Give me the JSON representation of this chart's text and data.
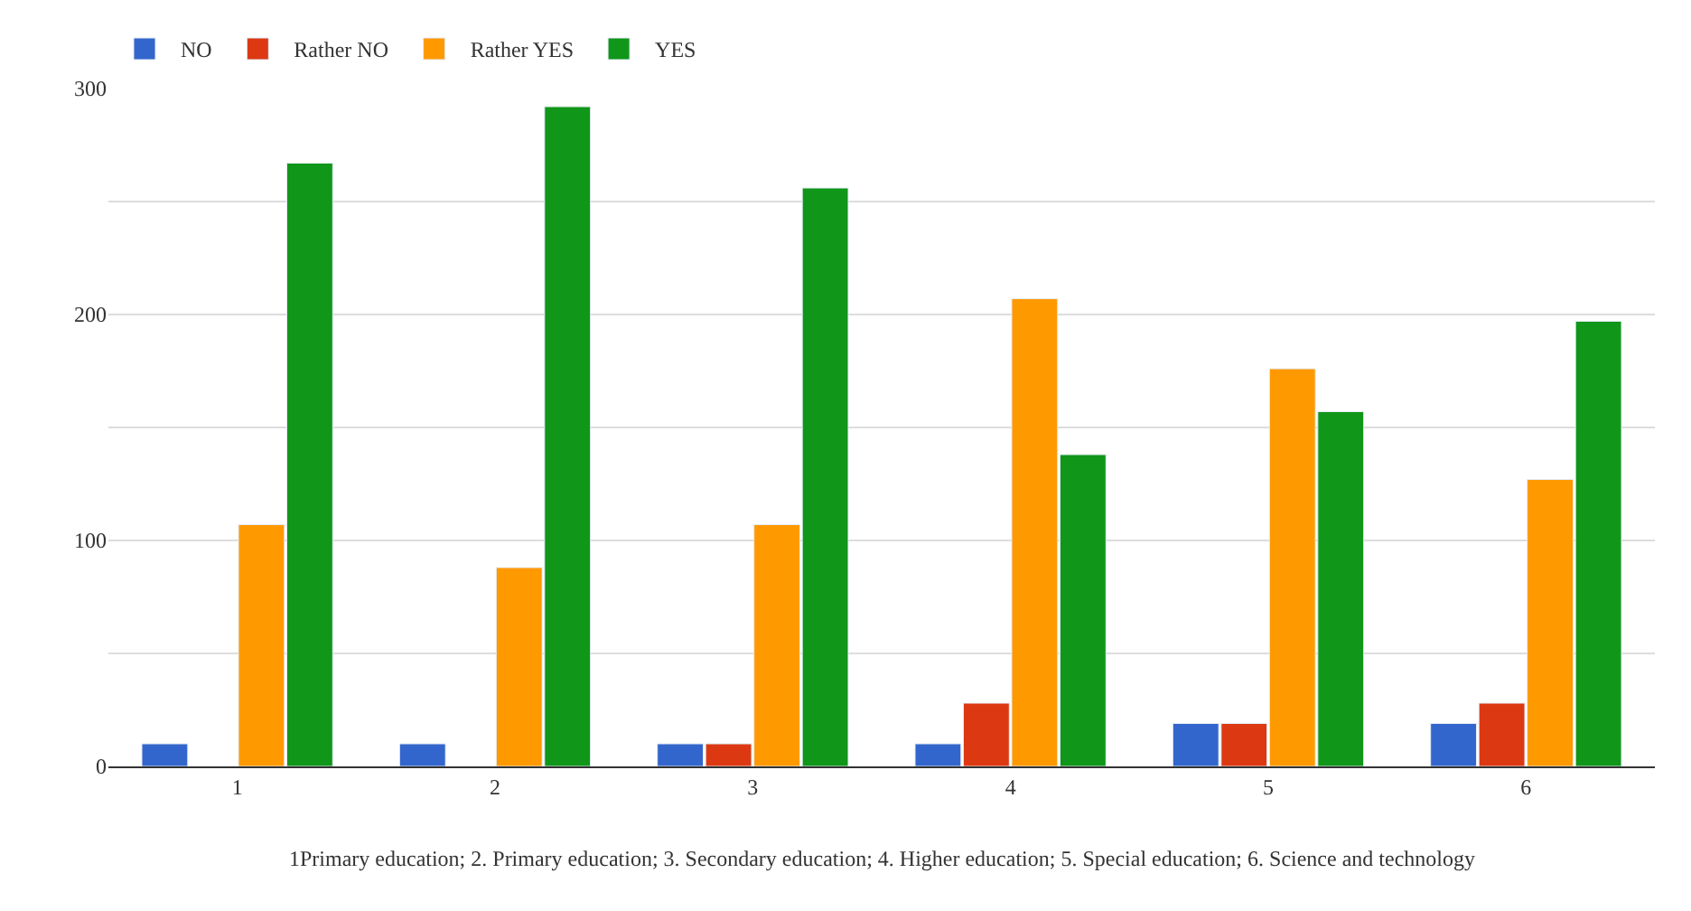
{
  "chart_data": {
    "type": "bar",
    "categories": [
      "1",
      "2",
      "3",
      "4",
      "5",
      "6"
    ],
    "series": [
      {
        "name": "NO",
        "color": "#3366cc",
        "values": [
          10,
          10,
          10,
          10,
          19,
          19
        ]
      },
      {
        "name": "Rather NO",
        "color": "#dc3912",
        "values": [
          null,
          null,
          10,
          28,
          19,
          28
        ]
      },
      {
        "name": "Rather YES",
        "color": "#ff9900",
        "values": [
          107,
          88,
          107,
          207,
          176,
          127
        ]
      },
      {
        "name": "YES",
        "color": "#109618",
        "values": [
          267,
          292,
          256,
          138,
          157,
          197
        ]
      }
    ],
    "ylim": [
      0,
      300
    ],
    "yticks": [
      0,
      {
        "value": 50,
        "label": null
      },
      100,
      {
        "value": 150,
        "label": null
      },
      200,
      {
        "value": 250,
        "label": null
      },
      300
    ],
    "grid": "y",
    "legend": "top left",
    "annotations": [
      "1Primary education; 2. Primary education; 3. Secondary education; 4. Higher education; 5. Special education; 6. Science and technology"
    ]
  }
}
